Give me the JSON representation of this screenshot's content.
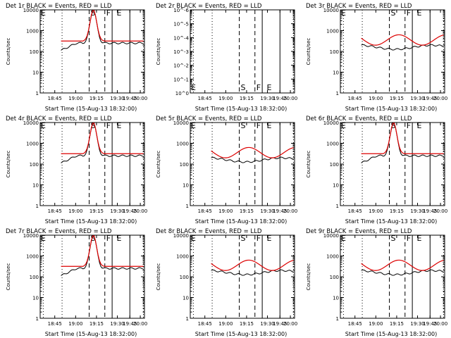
{
  "chart_data": [
    {
      "type": "line",
      "title": "Det 1r BLACK = Events, RED = LLD",
      "xlabel": "Start Time (15-Aug-13 18:32:00)",
      "ylabel": "Counts/sec",
      "yscale": "log",
      "ylim": [
        1,
        10000
      ],
      "y_ticks": [
        "1",
        "10",
        "100",
        "1000",
        "10000"
      ],
      "x_ticks": [
        "18:45",
        "19:00",
        "19:15",
        "19:30",
        "19:45",
        "20:00"
      ],
      "markers": [
        "S",
        "F",
        "E"
      ],
      "has_data": true,
      "peak": "mid"
    },
    {
      "type": "line",
      "title": "Det 2r BLACK = Events, RED = LLD",
      "xlabel": "Start Time (15-Aug-13 18:32:00)",
      "ylabel": "Counts/sec",
      "yscale": "log",
      "ylim": [
        1,
        1e-06
      ],
      "y_ticks": [
        "10^0",
        "10^-1",
        "10^-2",
        "10^-3",
        "10^-4",
        "10^-5",
        "10^-6"
      ],
      "x_ticks": [
        "18:45",
        "19:00",
        "19:15",
        "19:30",
        "19:45",
        "20:00"
      ],
      "markers": [
        "S",
        "F",
        "E"
      ],
      "has_data": false
    },
    {
      "type": "line",
      "title": "Det 3r BLACK = Events, RED = LLD",
      "xlabel": "Start Time (15-Aug-13 18:32:00)",
      "ylabel": "Counts/sec",
      "yscale": "log",
      "ylim": [
        1,
        10000
      ],
      "y_ticks": [
        "1",
        "10",
        "100",
        "1000",
        "10000"
      ],
      "x_ticks": [
        "18:45",
        "19:00",
        "19:15",
        "19:30",
        "19:45",
        "20:00"
      ],
      "markers": [
        "S",
        "F",
        "E"
      ],
      "has_data": true,
      "peak": "flat"
    },
    {
      "type": "line",
      "title": "Det 4r BLACK = Events, RED = LLD",
      "xlabel": "Start Time (15-Aug-13 18:32:00)",
      "ylabel": "Counts/sec",
      "yscale": "log",
      "ylim": [
        1,
        10000
      ],
      "y_ticks": [
        "1",
        "10",
        "100",
        "1000",
        "10000"
      ],
      "x_ticks": [
        "18:45",
        "19:00",
        "19:15",
        "19:30",
        "19:45",
        "20:00"
      ],
      "markers": [
        "S",
        "F",
        "E"
      ],
      "has_data": true,
      "peak": "mid"
    },
    {
      "type": "line",
      "title": "Det 5r BLACK = Events, RED = LLD",
      "xlabel": "Start Time (15-Aug-13 18:32:00)",
      "ylabel": "Counts/sec",
      "yscale": "log",
      "ylim": [
        1,
        10000
      ],
      "y_ticks": [
        "1",
        "10",
        "100",
        "1000",
        "10000"
      ],
      "x_ticks": [
        "18:45",
        "19:00",
        "19:15",
        "19:30",
        "19:45",
        "20:00"
      ],
      "markers": [
        "S",
        "F",
        "E"
      ],
      "has_data": true,
      "peak": "flat"
    },
    {
      "type": "line",
      "title": "Det 6r BLACK = Events, RED = LLD",
      "xlabel": "Start Time (15-Aug-13 18:32:00)",
      "ylabel": "Counts/sec",
      "yscale": "log",
      "ylim": [
        1,
        10000
      ],
      "y_ticks": [
        "1",
        "10",
        "100",
        "1000",
        "10000"
      ],
      "x_ticks": [
        "18:45",
        "19:00",
        "19:15",
        "19:30",
        "19:45",
        "20:00"
      ],
      "markers": [
        "S",
        "F",
        "E"
      ],
      "has_data": true,
      "peak": "mid"
    },
    {
      "type": "line",
      "title": "Det 7r BLACK = Events, RED = LLD",
      "xlabel": "Start Time (15-Aug-13 18:32:00)",
      "ylabel": "Counts/sec",
      "yscale": "log",
      "ylim": [
        1,
        10000
      ],
      "y_ticks": [
        "1",
        "10",
        "100",
        "1000",
        "10000"
      ],
      "x_ticks": [
        "18:45",
        "19:00",
        "19:15",
        "19:30",
        "19:45",
        "20:00"
      ],
      "markers": [
        "S",
        "F",
        "E"
      ],
      "has_data": true,
      "peak": "mid"
    },
    {
      "type": "line",
      "title": "Det 8r BLACK = Events, RED = LLD",
      "xlabel": "Start Time (15-Aug-13 18:32:00)",
      "ylabel": "Counts/sec",
      "yscale": "log",
      "ylim": [
        1,
        10000
      ],
      "y_ticks": [
        "1",
        "10",
        "100",
        "1000",
        "10000"
      ],
      "x_ticks": [
        "18:45",
        "19:00",
        "19:15",
        "19:30",
        "19:45",
        "20:00"
      ],
      "markers": [
        "S",
        "F",
        "E"
      ],
      "has_data": true,
      "peak": "flat"
    },
    {
      "type": "line",
      "title": "Det 9r BLACK = Events, RED = LLD",
      "xlabel": "Start Time (15-Aug-13 18:32:00)",
      "ylabel": "Counts/sec",
      "yscale": "log",
      "ylim": [
        1,
        10000
      ],
      "y_ticks": [
        "1",
        "10",
        "100",
        "1000",
        "10000"
      ],
      "x_ticks": [
        "18:45",
        "19:00",
        "19:15",
        "19:30",
        "19:45",
        "20:00"
      ],
      "markers": [
        "S",
        "F",
        "E"
      ],
      "has_data": true,
      "peak": "flat"
    }
  ],
  "colors": {
    "events": "#000000",
    "lld": "#dd0000",
    "axes": "#000000",
    "background": "#ffffff"
  }
}
